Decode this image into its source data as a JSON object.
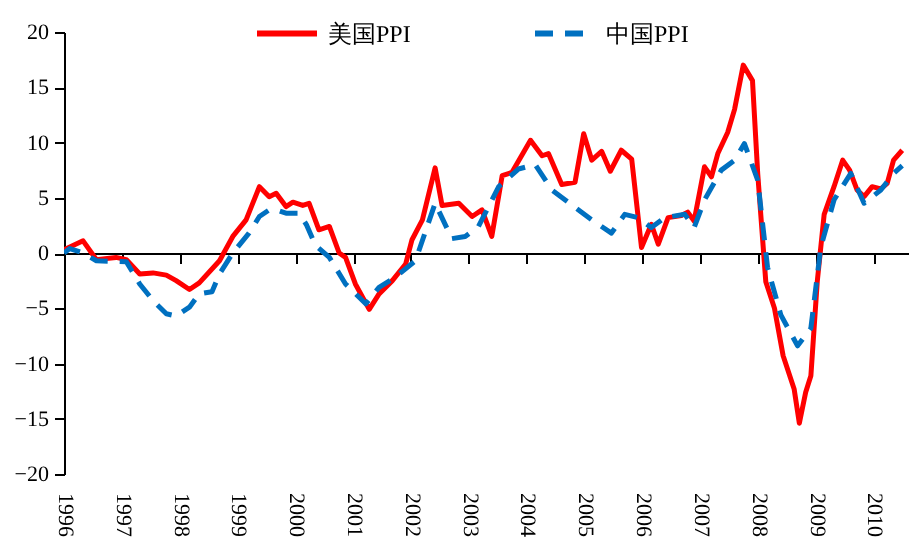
{
  "chart_data": {
    "type": "line",
    "xlim": [
      1996,
      2010.6
    ],
    "xticks": [
      1996,
      1997,
      1998,
      1999,
      2000,
      2001,
      2002,
      2003,
      2004,
      2005,
      2006,
      2007,
      2008,
      2009,
      2010
    ],
    "ylim": [
      -20,
      20
    ],
    "yticks": [
      -20,
      -15,
      -10,
      -5,
      0,
      5,
      10,
      15,
      20
    ],
    "legend": "top",
    "marker": "none",
    "series": [
      {
        "name": "美国PPI",
        "color": "#ff0000",
        "line_style": "solid",
        "x": [
          1996.0,
          1996.33,
          1996.56,
          1996.9,
          1997.08,
          1997.31,
          1997.54,
          1997.77,
          1997.94,
          1998.17,
          1998.34,
          1998.69,
          1998.92,
          1999.15,
          1999.38,
          1999.55,
          1999.67,
          1999.84,
          1999.96,
          2000.13,
          2000.24,
          2000.41,
          2000.59,
          2000.76,
          2000.87,
          2001.04,
          2001.28,
          2001.45,
          2001.68,
          2001.91,
          2002.02,
          2002.2,
          2002.42,
          2002.54,
          2002.83,
          2003.06,
          2003.23,
          2003.4,
          2003.58,
          2003.75,
          2004.07,
          2004.27,
          2004.38,
          2004.61,
          2004.84,
          2004.99,
          2005.13,
          2005.3,
          2005.45,
          2005.64,
          2005.82,
          2005.99,
          2006.16,
          2006.28,
          2006.45,
          2006.68,
          2006.79,
          2006.9,
          2007.08,
          2007.2,
          2007.31,
          2007.48,
          2007.6,
          2007.75,
          2007.91,
          2008.0,
          2008.14,
          2008.29,
          2008.44,
          2008.63,
          2008.72,
          2008.83,
          2008.92,
          2009.03,
          2009.15,
          2009.32,
          2009.47,
          2009.59,
          2009.72,
          2009.84,
          2009.98,
          2010.13,
          2010.24,
          2010.35,
          2010.5
        ],
        "values": [
          0.3,
          1.1,
          -0.6,
          -0.4,
          -0.6,
          -1.9,
          -1.8,
          -2,
          -2.5,
          -3.3,
          -2.7,
          -0.7,
          1.5,
          3,
          6,
          5.1,
          5.4,
          4.2,
          4.6,
          4.3,
          4.5,
          2.1,
          2.4,
          0,
          -0.4,
          -2.8,
          -5.1,
          -3.7,
          -2.5,
          -1,
          1.2,
          3,
          7.7,
          4.3,
          4.5,
          3.3,
          3.9,
          1.5,
          7,
          7.3,
          10.2,
          8.8,
          9,
          6.2,
          6.4,
          10.8,
          8.4,
          9.2,
          7.4,
          9.3,
          8.5,
          0.5,
          2.6,
          0.8,
          3.2,
          3.4,
          3.7,
          2.9,
          7.8,
          6.9,
          9,
          10.9,
          13,
          17,
          15.6,
          7.2,
          -2.6,
          -5,
          -9.3,
          -12.3,
          -15.4,
          -12.6,
          -11.1,
          -2.6,
          3.5,
          6,
          8.4,
          7.5,
          5.7,
          5.1,
          6,
          5.8,
          6.3,
          8.4,
          9.3
        ]
      },
      {
        "name": "中国PPI",
        "color": "#0070c0",
        "line_style": "dashed",
        "x": [
          1996.0,
          1996.1,
          1996.33,
          1996.56,
          1997.08,
          1997.31,
          1997.54,
          1997.77,
          1997.94,
          1998.17,
          1998.34,
          1998.56,
          1998.69,
          1998.92,
          1999.2,
          1999.38,
          1999.55,
          1999.67,
          1999.84,
          2000.07,
          2000.2,
          2000.35,
          2000.59,
          2000.87,
          2001.22,
          2001.45,
          2001.73,
          2002.08,
          2002.42,
          2002.71,
          2002.94,
          2003.17,
          2003.52,
          2003.86,
          2004.15,
          2004.44,
          2004.67,
          2005.13,
          2005.47,
          2005.7,
          2005.93,
          2006.16,
          2006.39,
          2006.74,
          2006.9,
          2007.08,
          2007.37,
          2007.6,
          2007.77,
          2008.0,
          2008.17,
          2008.4,
          2008.69,
          2008.92,
          2009.09,
          2009.32,
          2009.61,
          2009.84,
          2010.13,
          2010.35,
          2010.5
        ],
        "values": [
          0,
          0.4,
          0,
          -0.7,
          -0.8,
          -2.8,
          -4.3,
          -5.5,
          -5.7,
          -4.9,
          -3.7,
          -3.5,
          -1.9,
          0,
          1.8,
          3.3,
          3.9,
          3.9,
          3.6,
          3.6,
          2.5,
          0.7,
          -0.4,
          -2.8,
          -4.6,
          -3.1,
          -2.2,
          -0.7,
          4.5,
          1.3,
          1.5,
          2.4,
          6,
          7.6,
          8,
          5.7,
          4.8,
          3,
          1.8,
          3.5,
          3.2,
          2.3,
          3.2,
          3.5,
          2.3,
          4.8,
          7.5,
          8.4,
          9.9,
          6.6,
          -1.3,
          -5.6,
          -8.4,
          -6.8,
          0.5,
          4.8,
          7.2,
          4.5,
          5.7,
          7.2,
          7.9
        ]
      }
    ]
  }
}
